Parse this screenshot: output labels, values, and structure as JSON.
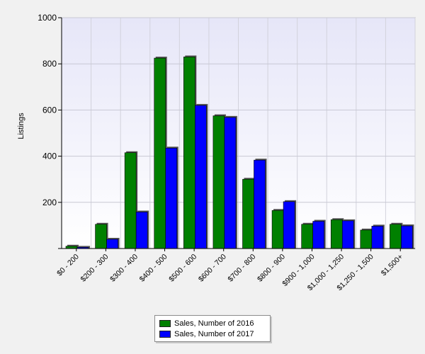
{
  "chart_data": {
    "type": "bar",
    "ylabel": "Listings",
    "ylim": [
      0,
      1000
    ],
    "yticks": [
      200,
      400,
      600,
      800,
      1000
    ],
    "grid": true,
    "legend_position": "bottom",
    "categories": [
      "$0 - 200",
      "$200 - 300",
      "$300 - 400",
      "$400 - 500",
      "$500 - 600",
      "$600 - 700",
      "$700 - 800",
      "$800 - 900",
      "$900 - 1,000",
      "$1,000 - 1,250",
      "$1,250 - 1,500",
      "$1,500+"
    ],
    "series": [
      {
        "name": "Sales, Number of 2016",
        "color": "#008000",
        "values": [
          10,
          105,
          415,
          825,
          830,
          575,
          300,
          165,
          105,
          125,
          80,
          105
        ]
      },
      {
        "name": "Sales, Number of 2017",
        "color": "#0000ff",
        "values": [
          5,
          40,
          158,
          435,
          620,
          568,
          383,
          203,
          118,
          120,
          97,
          98
        ]
      }
    ]
  }
}
